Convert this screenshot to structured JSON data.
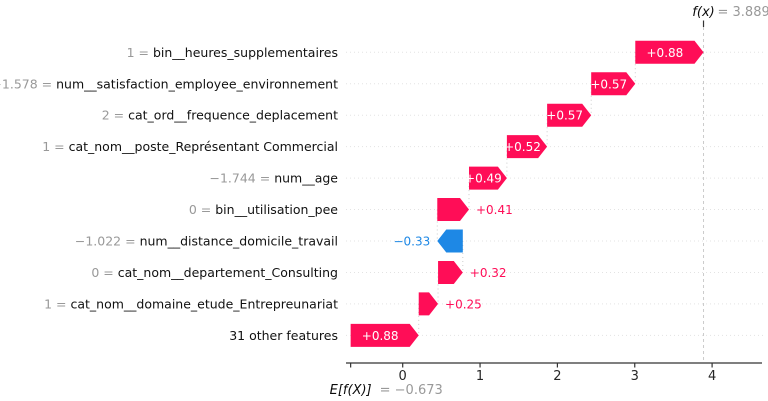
{
  "chart_data": {
    "type": "bar",
    "variant": "shap-waterfall",
    "title": "",
    "xlabel": "",
    "ylabel": "",
    "x_axis_range": [
      -0.75,
      4.65
    ],
    "grid": "horizontal-dotted",
    "x_ticks": [
      "0",
      "1",
      "2",
      "3",
      "4"
    ],
    "x_tick_values": [
      0,
      1,
      2,
      3,
      4
    ],
    "fx_annotation": {
      "name": "f(x)",
      "value_text": "= 3.889",
      "numeric": 3.889
    },
    "base_annotation": {
      "name": "E[f(X)]",
      "value_text": "= −0.673",
      "numeric": -0.673
    },
    "colors": {
      "positive": "#ff0d57",
      "negative": "#1e88e5",
      "inside_label": "#ffffff",
      "value_gray": "#999999",
      "feature_black": "#111111",
      "axis": "#333333",
      "grid": "#e3e3e3",
      "connector": "#cccccc",
      "fx_line": "#cccccc"
    },
    "rows": [
      {
        "prefix": "1 = ",
        "feature": "bin__heures_supplementaires",
        "contribution": 0.88,
        "label": "+0.88",
        "start": 3.007,
        "end": 3.889,
        "label_inside": true
      },
      {
        "prefix": "−1.578 = ",
        "feature": "num__satisfaction_employee_environnement",
        "contribution": 0.57,
        "label": "+0.57",
        "start": 2.437,
        "end": 3.007,
        "label_inside": true
      },
      {
        "prefix": "2 = ",
        "feature": "cat_ord__frequence_deplacement",
        "contribution": 0.57,
        "label": "+0.57",
        "start": 1.867,
        "end": 2.437,
        "label_inside": true
      },
      {
        "prefix": "1 = ",
        "feature": "cat_nom__poste_Représentant Commercial",
        "contribution": 0.52,
        "label": "+0.52",
        "start": 1.347,
        "end": 1.867,
        "label_inside": true
      },
      {
        "prefix": "−1.744 = ",
        "feature": "num__age",
        "contribution": 0.49,
        "label": "+0.49",
        "start": 0.857,
        "end": 1.347,
        "label_inside": true
      },
      {
        "prefix": "0 = ",
        "feature": "bin__utilisation_pee",
        "contribution": 0.41,
        "label": "+0.41",
        "start": 0.447,
        "end": 0.857,
        "label_inside": false
      },
      {
        "prefix": "−1.022 = ",
        "feature": "num__distance_domicile_travail",
        "contribution": -0.33,
        "label": "−0.33",
        "start": 0.777,
        "end": 0.447,
        "label_inside": false
      },
      {
        "prefix": "0 = ",
        "feature": "cat_nom__departement_Consulting",
        "contribution": 0.32,
        "label": "+0.32",
        "start": 0.457,
        "end": 0.777,
        "label_inside": false
      },
      {
        "prefix": "1 = ",
        "feature": "cat_nom__domaine_etude_Entrepreunariat",
        "contribution": 0.25,
        "label": "+0.25",
        "start": 0.207,
        "end": 0.457,
        "label_inside": false
      },
      {
        "prefix": "",
        "feature": "31 other features",
        "contribution": 0.88,
        "label": "+0.88",
        "start": -0.673,
        "end": 0.207,
        "label_inside": true
      }
    ]
  }
}
